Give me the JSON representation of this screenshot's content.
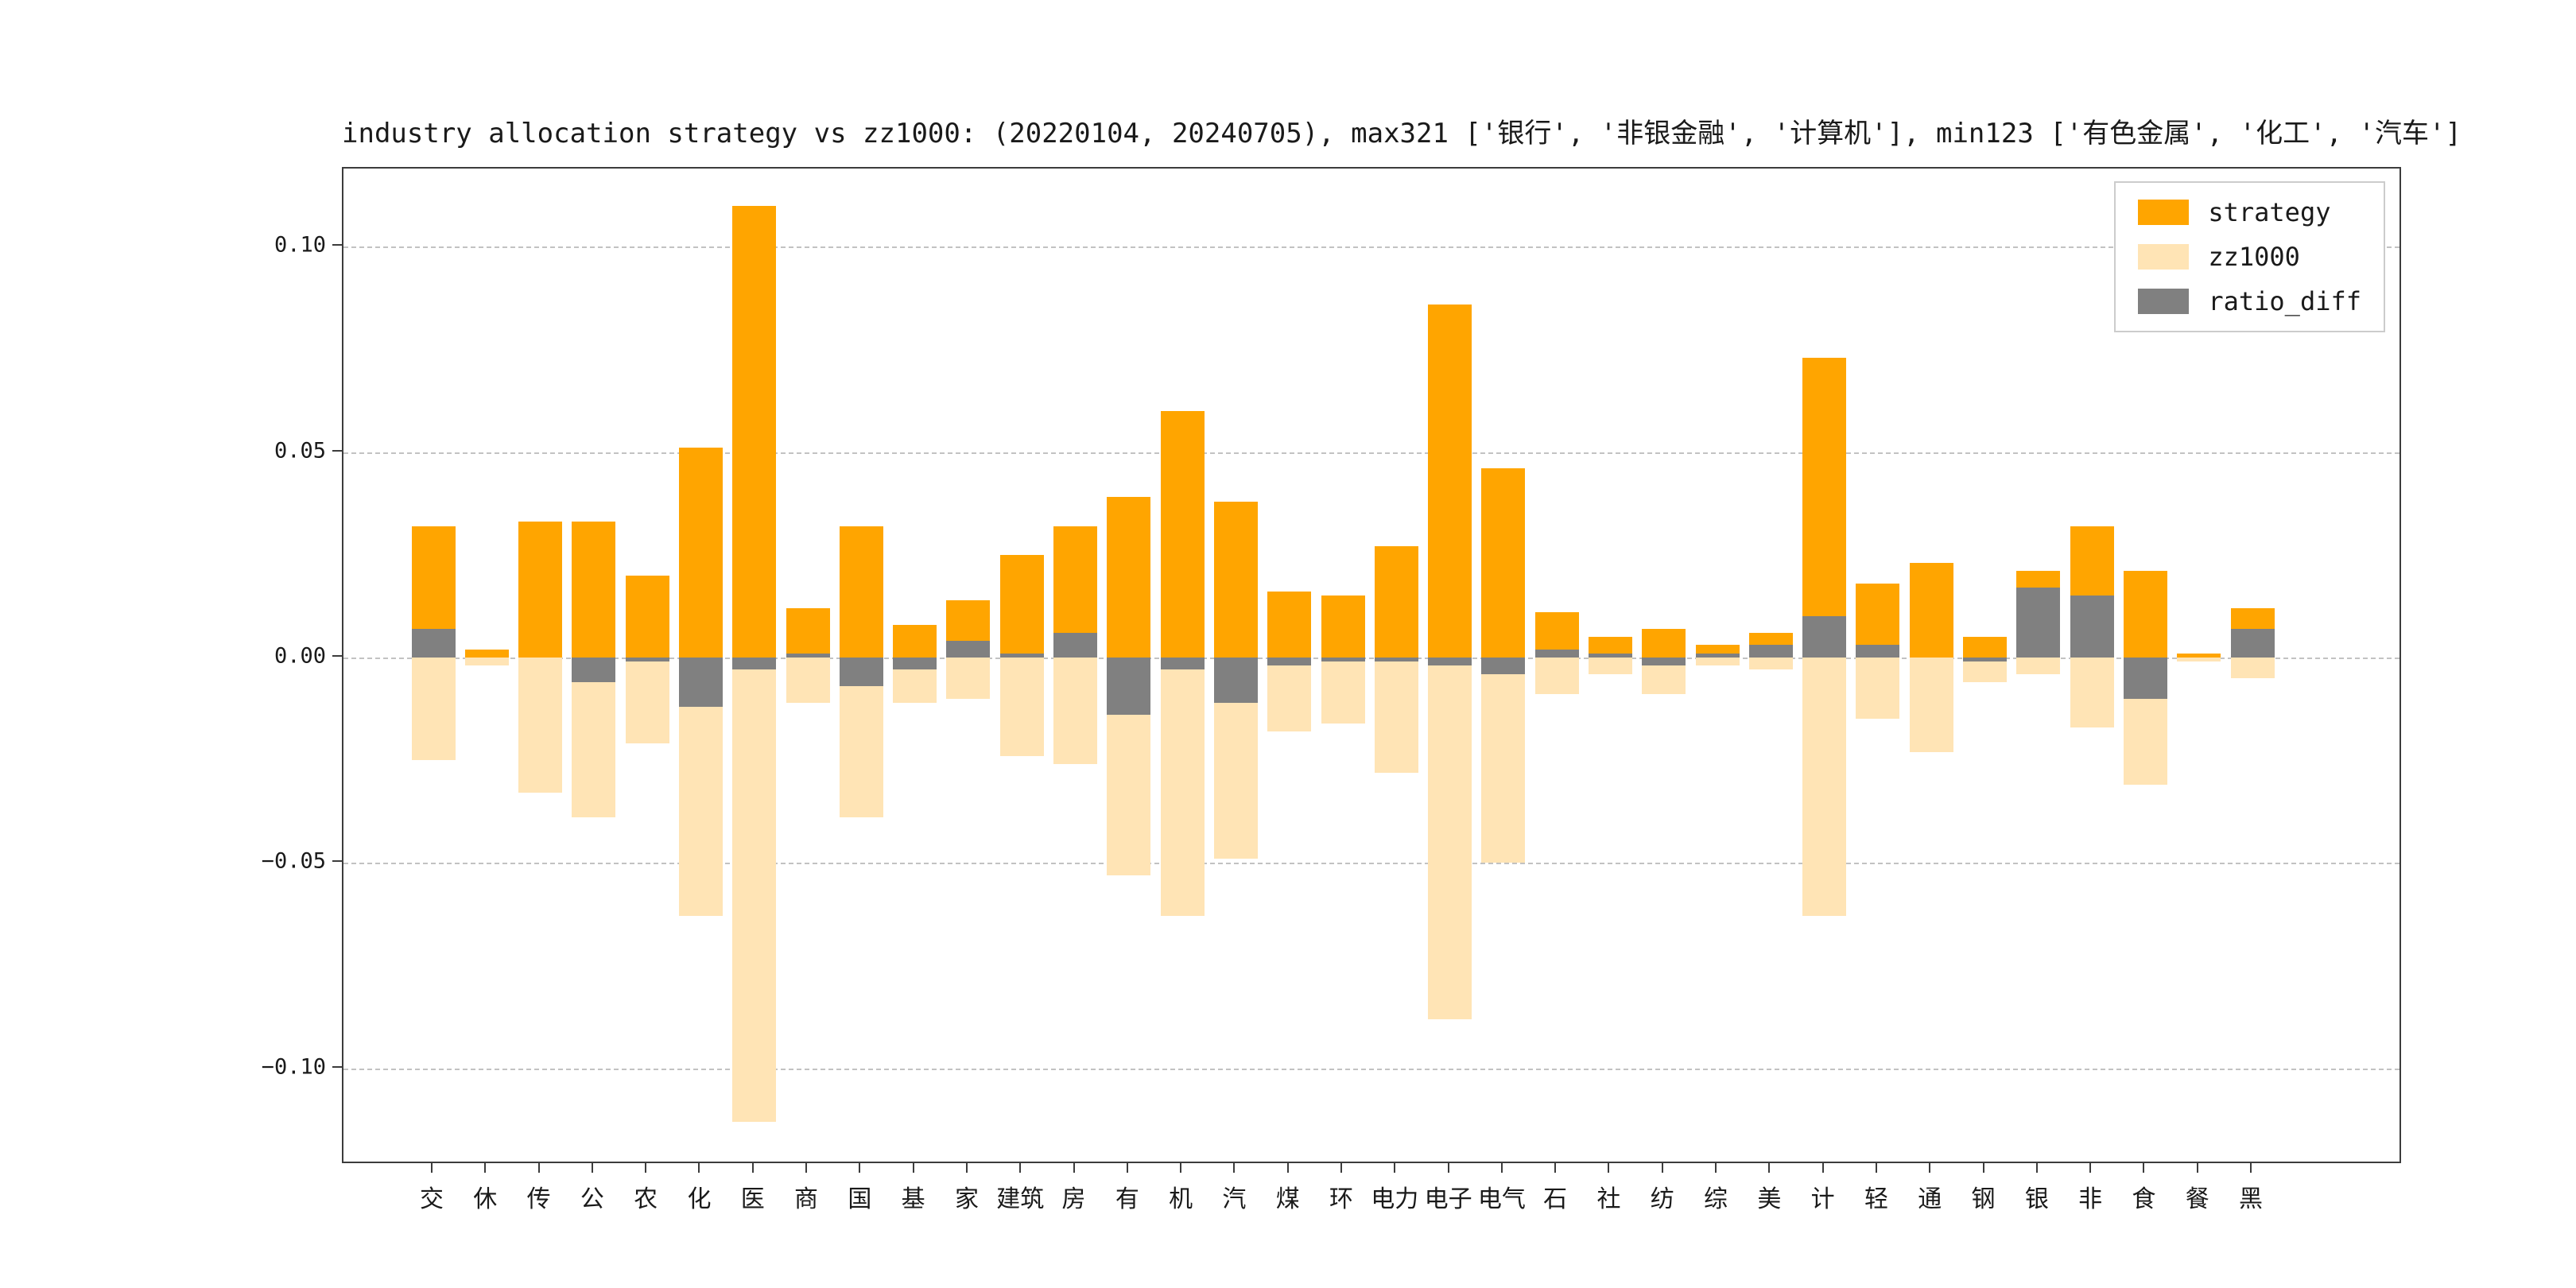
{
  "figure": {
    "background_color": "#FFFFFF",
    "grid_color": "#C2C2C2",
    "axis_color": "#3C3C3C"
  },
  "chart_data": {
    "type": "bar",
    "title": "industry allocation strategy vs zz1000: (20220104, 20240705), max321 ['银行', '非银金融', '计算机'], min123 ['有色金属', '化工', '汽车']",
    "xlabel": "",
    "ylabel": "",
    "categories": [
      "交",
      "休",
      "传",
      "公",
      "农",
      "化",
      "医",
      "商",
      "国",
      "基",
      "家",
      "建筑",
      "房",
      "有",
      "机",
      "汽",
      "煤",
      "环",
      "电力",
      "电子",
      "电气",
      "石",
      "社",
      "纺",
      "综",
      "美",
      "计",
      "轻",
      "通",
      "钢",
      "银",
      "非",
      "食",
      "餐",
      "黑"
    ],
    "series": [
      {
        "name": "strategy",
        "color": "#FFA500",
        "values": [
          0.032,
          0.002,
          0.033,
          0.033,
          0.02,
          0.051,
          0.11,
          0.012,
          0.032,
          0.008,
          0.014,
          0.025,
          0.032,
          0.039,
          0.06,
          0.038,
          0.016,
          0.015,
          0.027,
          0.086,
          0.046,
          0.011,
          0.005,
          0.007,
          0.003,
          0.006,
          0.073,
          0.018,
          0.023,
          0.005,
          0.021,
          0.032,
          0.021,
          0.001,
          0.012
        ]
      },
      {
        "name": "zz1000",
        "color": "#FFE4B5",
        "values": [
          -0.025,
          -0.002,
          -0.033,
          -0.039,
          -0.021,
          -0.063,
          -0.113,
          -0.011,
          -0.039,
          -0.011,
          -0.01,
          -0.024,
          -0.026,
          -0.053,
          -0.063,
          -0.049,
          -0.018,
          -0.016,
          -0.028,
          -0.088,
          -0.05,
          -0.009,
          -0.004,
          -0.009,
          -0.002,
          -0.003,
          -0.063,
          -0.015,
          -0.023,
          -0.006,
          -0.004,
          -0.017,
          -0.031,
          -0.001,
          -0.005
        ]
      },
      {
        "name": "ratio_diff",
        "color": "#808080",
        "values": [
          0.007,
          0.0,
          0.0,
          -0.006,
          -0.001,
          -0.012,
          -0.003,
          0.001,
          -0.007,
          -0.003,
          0.004,
          0.001,
          0.006,
          -0.014,
          -0.003,
          -0.011,
          -0.002,
          -0.001,
          -0.001,
          -0.002,
          -0.004,
          0.002,
          0.001,
          -0.002,
          0.001,
          0.003,
          0.01,
          0.003,
          0.0,
          -0.001,
          0.017,
          0.015,
          -0.01,
          0.0,
          0.007
        ]
      }
    ],
    "yticks": [
      0.1,
      0.05,
      0.0,
      -0.05,
      -0.1
    ],
    "ytick_labels": [
      "0.10",
      "0.05",
      "0.00",
      "−0.05",
      "−0.10"
    ],
    "ylim": [
      -0.1235,
      0.119
    ],
    "grid": "dashed-horizontal",
    "legend_position": "upper-right",
    "legend": [
      "strategy",
      "zz1000",
      "ratio_diff"
    ],
    "annotations": {
      "max321": [
        "银行",
        "非银金融",
        "计算机"
      ],
      "min123": [
        "有色金属",
        "化工",
        "汽车"
      ],
      "date_range": [
        "20220104",
        "20240705"
      ]
    }
  }
}
